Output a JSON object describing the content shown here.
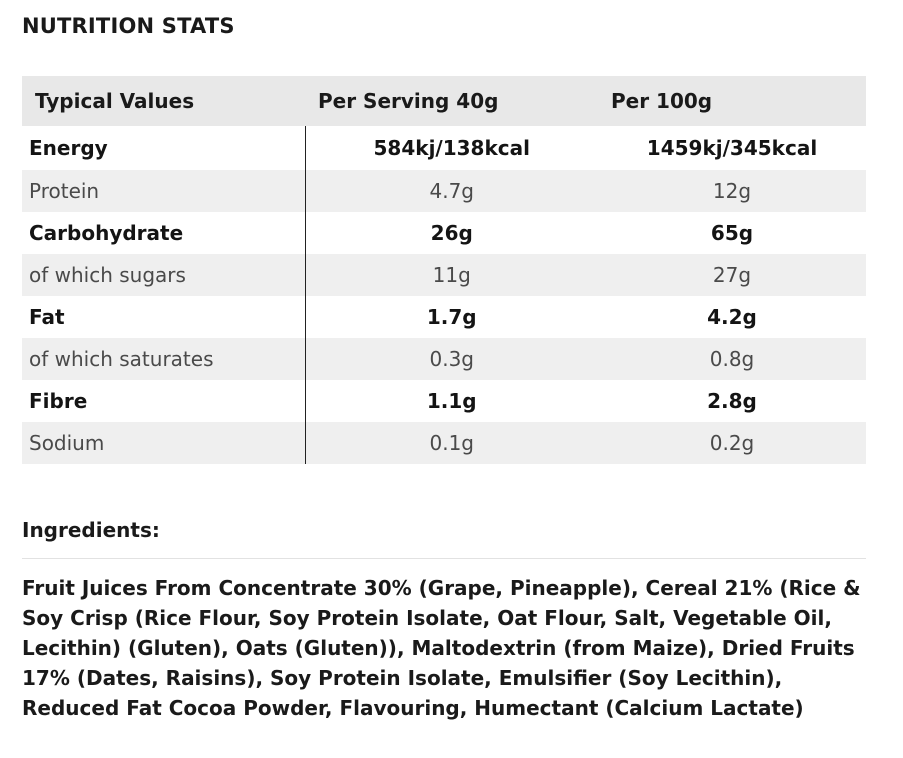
{
  "nutrition": {
    "title": "NUTRITION STATS",
    "headers": [
      "Typical Values",
      "Per Serving 40g",
      "Per 100g"
    ],
    "rows": [
      {
        "name": "Energy",
        "serving": "584kj/138kcal",
        "per100": "1459kj/345kcal",
        "emphasis": "bold"
      },
      {
        "name": "Protein",
        "serving": "4.7g",
        "per100": "12g",
        "emphasis": "light"
      },
      {
        "name": "Carbohydrate",
        "serving": "26g",
        "per100": "65g",
        "emphasis": "bold"
      },
      {
        "name": "of which sugars",
        "serving": "11g",
        "per100": "27g",
        "emphasis": "light"
      },
      {
        "name": "Fat",
        "serving": "1.7g",
        "per100": "4.2g",
        "emphasis": "bold"
      },
      {
        "name": "of which saturates",
        "serving": "0.3g",
        "per100": "0.8g",
        "emphasis": "light"
      },
      {
        "name": "Fibre",
        "serving": "1.1g",
        "per100": "2.8g",
        "emphasis": "bold"
      },
      {
        "name": "Sodium",
        "serving": "0.1g",
        "per100": "0.2g",
        "emphasis": "light"
      }
    ]
  },
  "ingredients": {
    "title": "Ingredients:",
    "text": "Fruit Juices From Concentrate 30% (Grape, Pineapple), Cereal 21% (Rice & Soy Crisp (Rice Flour, Soy Protein Isolate, Oat Flour, Salt, Vegetable Oil, Lecithin) (Gluten), Oats (Gluten)), Maltodextrin (from Maize), Dried Fruits 17% (Dates, Raisins), Soy Protein Isolate, Emulsifier (Soy Lecithin), Reduced Fat Cocoa Powder, Flavouring, Humectant (Calcium Lactate)"
  },
  "colors": {
    "header_bg": "#e8e8e8",
    "sub_row_bg": "#efefef",
    "text": "#1a1a1a",
    "sub_text": "#4a4a4a"
  }
}
